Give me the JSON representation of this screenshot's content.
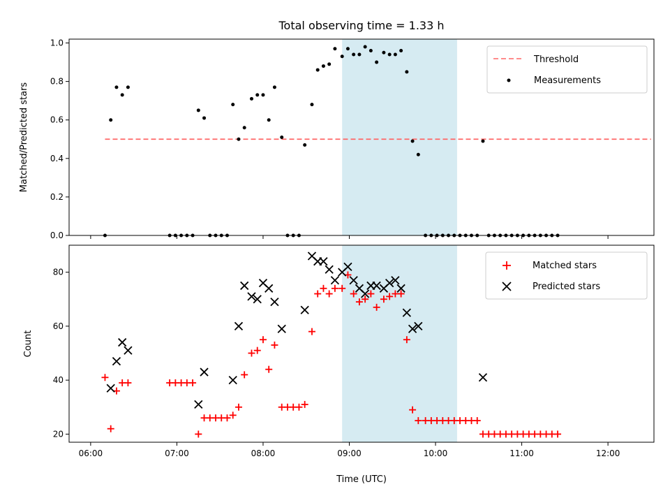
{
  "figure": {
    "title": "Total observing time = 1.33 h",
    "xlabel": "Time (UTC)",
    "xticks": [
      "06:00",
      "07:00",
      "08:00",
      "09:00",
      "10:00",
      "11:00",
      "12:00"
    ],
    "shade_color": "#add8e6",
    "shade_span": [
      "08:55",
      "10:15"
    ]
  },
  "chart_data": [
    {
      "type": "scatter",
      "ylabel": "Matched/Predicted stars",
      "ylim": [
        0,
        1.0
      ],
      "yticks": [
        "0.0",
        "0.2",
        "0.4",
        "0.6",
        "0.8",
        "1.0"
      ],
      "threshold": {
        "name": "Threshold",
        "value": 0.5,
        "x_range": [
          "06:10",
          "12:30"
        ],
        "color": "#ff6666",
        "style": "dashed"
      },
      "series": [
        {
          "name": "Measurements",
          "color": "#000000",
          "marker": "dot",
          "points": [
            [
              "06:10",
              0.0
            ],
            [
              "06:14",
              0.6
            ],
            [
              "06:18",
              0.77
            ],
            [
              "06:22",
              0.73
            ],
            [
              "06:26",
              0.77
            ],
            [
              "06:55",
              0.0
            ],
            [
              "06:59",
              0.0
            ],
            [
              "07:03",
              0.0
            ],
            [
              "07:07",
              0.0
            ],
            [
              "07:11",
              0.0
            ],
            [
              "07:15",
              0.65
            ],
            [
              "07:19",
              0.61
            ],
            [
              "07:23",
              0.0
            ],
            [
              "07:27",
              0.0
            ],
            [
              "07:31",
              0.0
            ],
            [
              "07:35",
              0.0
            ],
            [
              "07:39",
              0.68
            ],
            [
              "07:43",
              0.5
            ],
            [
              "07:47",
              0.56
            ],
            [
              "07:52",
              0.71
            ],
            [
              "07:56",
              0.73
            ],
            [
              "08:00",
              0.73
            ],
            [
              "08:04",
              0.6
            ],
            [
              "08:08",
              0.77
            ],
            [
              "08:13",
              0.51
            ],
            [
              "08:17",
              0.0
            ],
            [
              "08:21",
              0.0
            ],
            [
              "08:25",
              0.0
            ],
            [
              "08:29",
              0.47
            ],
            [
              "08:34",
              0.68
            ],
            [
              "08:38",
              0.86
            ],
            [
              "08:42",
              0.88
            ],
            [
              "08:46",
              0.89
            ],
            [
              "08:50",
              0.97
            ],
            [
              "08:55",
              0.93
            ],
            [
              "08:59",
              0.97
            ],
            [
              "09:03",
              0.94
            ],
            [
              "09:07",
              0.94
            ],
            [
              "09:11",
              0.98
            ],
            [
              "09:15",
              0.96
            ],
            [
              "09:19",
              0.9
            ],
            [
              "09:24",
              0.95
            ],
            [
              "09:28",
              0.94
            ],
            [
              "09:32",
              0.94
            ],
            [
              "09:36",
              0.96
            ],
            [
              "09:40",
              0.85
            ],
            [
              "09:44",
              0.49
            ],
            [
              "09:48",
              0.42
            ],
            [
              "09:53",
              0.0
            ],
            [
              "09:57",
              0.0
            ],
            [
              "10:01",
              0.0
            ],
            [
              "10:05",
              0.0
            ],
            [
              "10:09",
              0.0
            ],
            [
              "10:13",
              0.0
            ],
            [
              "10:17",
              0.0
            ],
            [
              "10:21",
              0.0
            ],
            [
              "10:25",
              0.0
            ],
            [
              "10:29",
              0.0
            ],
            [
              "10:33",
              0.49
            ],
            [
              "10:37",
              0.0
            ],
            [
              "10:41",
              0.0
            ],
            [
              "10:45",
              0.0
            ],
            [
              "10:49",
              0.0
            ],
            [
              "10:53",
              0.0
            ],
            [
              "10:57",
              0.0
            ],
            [
              "11:01",
              0.0
            ],
            [
              "11:05",
              0.0
            ],
            [
              "11:09",
              0.0
            ],
            [
              "11:13",
              0.0
            ],
            [
              "11:17",
              0.0
            ],
            [
              "11:21",
              0.0
            ],
            [
              "11:25",
              0.0
            ]
          ]
        }
      ],
      "legend": {
        "position": "upper right"
      }
    },
    {
      "type": "scatter",
      "ylabel": "Count",
      "ylim": [
        17,
        90
      ],
      "yticks": [
        "20",
        "40",
        "60",
        "80"
      ],
      "series": [
        {
          "name": "Matched stars",
          "color": "#ff0000",
          "marker": "plus",
          "points": [
            [
              "06:10",
              41
            ],
            [
              "06:14",
              22
            ],
            [
              "06:18",
              36
            ],
            [
              "06:22",
              39
            ],
            [
              "06:26",
              39
            ],
            [
              "06:55",
              39
            ],
            [
              "06:59",
              39
            ],
            [
              "07:03",
              39
            ],
            [
              "07:07",
              39
            ],
            [
              "07:11",
              39
            ],
            [
              "07:15",
              20
            ],
            [
              "07:19",
              26
            ],
            [
              "07:23",
              26
            ],
            [
              "07:27",
              26
            ],
            [
              "07:31",
              26
            ],
            [
              "07:35",
              26
            ],
            [
              "07:39",
              27
            ],
            [
              "07:43",
              30
            ],
            [
              "07:47",
              42
            ],
            [
              "07:52",
              50
            ],
            [
              "07:56",
              51
            ],
            [
              "08:00",
              55
            ],
            [
              "08:04",
              44
            ],
            [
              "08:08",
              53
            ],
            [
              "08:13",
              30
            ],
            [
              "08:17",
              30
            ],
            [
              "08:21",
              30
            ],
            [
              "08:25",
              30
            ],
            [
              "08:29",
              31
            ],
            [
              "08:34",
              58
            ],
            [
              "08:38",
              72
            ],
            [
              "08:42",
              74
            ],
            [
              "08:46",
              72
            ],
            [
              "08:50",
              74
            ],
            [
              "08:55",
              74
            ],
            [
              "08:59",
              79
            ],
            [
              "09:03",
              72
            ],
            [
              "09:07",
              69
            ],
            [
              "09:11",
              70
            ],
            [
              "09:15",
              72
            ],
            [
              "09:19",
              67
            ],
            [
              "09:24",
              70
            ],
            [
              "09:28",
              71
            ],
            [
              "09:32",
              72
            ],
            [
              "09:36",
              72
            ],
            [
              "09:40",
              55
            ],
            [
              "09:44",
              29
            ],
            [
              "09:48",
              25
            ],
            [
              "09:53",
              25
            ],
            [
              "09:57",
              25
            ],
            [
              "10:01",
              25
            ],
            [
              "10:05",
              25
            ],
            [
              "10:09",
              25
            ],
            [
              "10:13",
              25
            ],
            [
              "10:17",
              25
            ],
            [
              "10:21",
              25
            ],
            [
              "10:25",
              25
            ],
            [
              "10:29",
              25
            ],
            [
              "10:33",
              20
            ],
            [
              "10:37",
              20
            ],
            [
              "10:41",
              20
            ],
            [
              "10:45",
              20
            ],
            [
              "10:49",
              20
            ],
            [
              "10:53",
              20
            ],
            [
              "10:57",
              20
            ],
            [
              "11:01",
              20
            ],
            [
              "11:05",
              20
            ],
            [
              "11:09",
              20
            ],
            [
              "11:13",
              20
            ],
            [
              "11:17",
              20
            ],
            [
              "11:21",
              20
            ],
            [
              "11:25",
              20
            ]
          ]
        },
        {
          "name": "Predicted stars",
          "color": "#000000",
          "marker": "x",
          "points": [
            [
              "06:14",
              37
            ],
            [
              "06:18",
              47
            ],
            [
              "06:22",
              54
            ],
            [
              "06:26",
              51
            ],
            [
              "07:15",
              31
            ],
            [
              "07:19",
              43
            ],
            [
              "07:39",
              40
            ],
            [
              "07:43",
              60
            ],
            [
              "07:47",
              75
            ],
            [
              "07:52",
              71
            ],
            [
              "07:56",
              70
            ],
            [
              "08:00",
              76
            ],
            [
              "08:04",
              74
            ],
            [
              "08:08",
              69
            ],
            [
              "08:13",
              59
            ],
            [
              "08:29",
              66
            ],
            [
              "08:34",
              86
            ],
            [
              "08:38",
              84
            ],
            [
              "08:42",
              84
            ],
            [
              "08:46",
              81
            ],
            [
              "08:50",
              77
            ],
            [
              "08:55",
              80
            ],
            [
              "08:59",
              82
            ],
            [
              "09:03",
              77
            ],
            [
              "09:07",
              74
            ],
            [
              "09:11",
              72
            ],
            [
              "09:15",
              75
            ],
            [
              "09:19",
              75
            ],
            [
              "09:24",
              74
            ],
            [
              "09:28",
              76
            ],
            [
              "09:32",
              77
            ],
            [
              "09:36",
              74
            ],
            [
              "09:40",
              65
            ],
            [
              "09:44",
              59
            ],
            [
              "09:48",
              60
            ],
            [
              "10:33",
              41
            ]
          ]
        }
      ],
      "legend": {
        "position": "upper right"
      }
    }
  ]
}
